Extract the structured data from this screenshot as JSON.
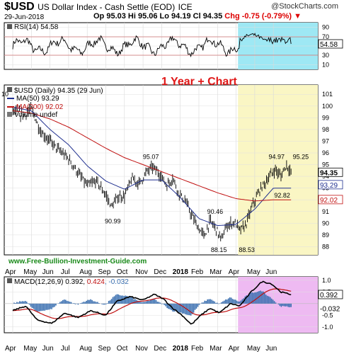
{
  "header": {
    "symbol": "$USD",
    "name": "US Dollar Index - Cash Settle (EOD)",
    "exchange": "ICE",
    "logo": "@StockCharts.com",
    "date": "29-Jun-2018",
    "ohlc": "Op 95.03  Hi 95.06  Lo 94.19  Cl 94.35",
    "change": "Chg -0.75 (-0.79%)",
    "change_marker": "▼"
  },
  "rsi": {
    "legend": "RSI(14) 54.58",
    "current_label": "54.58",
    "ticks": [
      90,
      70,
      50,
      30,
      10
    ],
    "ylim": [
      0,
      100
    ]
  },
  "price": {
    "overlay_title": "1 Year + Chart",
    "legend_main": "$USD (Daily) 94.35 (29 Jun)",
    "legend_ma50": "MA(50) 93.29",
    "legend_ma200": "MA(200) 92.02",
    "legend_vol": "Volume undef",
    "left_tick_fragment": "10",
    "ticks": [
      101,
      100,
      99,
      98,
      97,
      96,
      95,
      94,
      93,
      92,
      91,
      90,
      89,
      88
    ],
    "ylim": [
      87.3,
      101.8
    ],
    "current_labels": [
      {
        "text": "94.35",
        "value": 94.35,
        "color": "#000000",
        "bold": true
      },
      {
        "text": "93.29",
        "value": 93.29,
        "color": "#1f2f8f",
        "bold": false
      },
      {
        "text": "92.02",
        "value": 92.02,
        "color": "#c01010",
        "bold": false
      }
    ],
    "annotations": [
      {
        "text": "95.07",
        "x": 7.45,
        "y": 95.5
      },
      {
        "text": "90.99",
        "x": 5.4,
        "y": 90.0
      },
      {
        "text": "90.46",
        "x": 10.9,
        "y": 90.8
      },
      {
        "text": "88.15",
        "x": 11.1,
        "y": 87.55
      },
      {
        "text": "88.53",
        "x": 12.6,
        "y": 87.55
      },
      {
        "text": "94.97",
        "x": 14.2,
        "y": 95.5
      },
      {
        "text": "95.25",
        "x": 15.5,
        "y": 95.5
      },
      {
        "text": "92.82",
        "x": 14.5,
        "y": 92.2
      }
    ],
    "watermark": "www.Free-Bullion-Investment-Guide.com"
  },
  "macd": {
    "legend_prefix": "MACD(12,26,9)",
    "macd_value": "0.392",
    "signal_value": "0.424",
    "hist_value": "-0.032",
    "ticks": [
      "1.0",
      "0.5",
      "-0.5",
      "-1.0"
    ],
    "current_labels": [
      "0.392",
      "-0.032"
    ],
    "ylim": [
      -1.25,
      1.15
    ]
  },
  "x_axis": {
    "labels": [
      "Apr",
      "May",
      "Jun",
      "Jul",
      "Aug",
      "Sep",
      "Oct",
      "Nov",
      "Dec",
      "2018",
      "Feb",
      "Mar",
      "Apr",
      "May",
      "Jun"
    ],
    "highlight_start_month": 12.1
  },
  "colors": {
    "price": "#000000",
    "ma50": "#1f2f8f",
    "ma200": "#c01010",
    "rsi": "#000000",
    "rsi_band": "#9ee8f4",
    "price_band": "#faf6c4",
    "macd_band": "#eebaf2",
    "macd_line": "#000000",
    "signal_line": "#c01010",
    "histogram": "#3a6fb0",
    "title_red": "#e01818",
    "watermark": "#1a8a1a",
    "rsi_ref": "#c01010"
  },
  "chart_data": {
    "type": "line",
    "title": "$USD US Dollar Index - Cash Settle (EOD) ICE",
    "x": [
      "Apr",
      "May",
      "Jun",
      "Jul",
      "Aug",
      "Sep",
      "Oct",
      "Nov",
      "Dec",
      "2018",
      "Feb",
      "Mar",
      "Apr",
      "May",
      "Jun"
    ],
    "series": [
      {
        "name": "$USD (Daily)",
        "values": [
          99.8,
          98.8,
          97.2,
          95.8,
          93.6,
          92.3,
          93.4,
          94.8,
          93.8,
          91.5,
          89.5,
          89.9,
          90.2,
          92.5,
          94.6
        ]
      },
      {
        "name": "MA(50)",
        "values": [
          99.9,
          99.6,
          98.0,
          96.7,
          94.9,
          93.6,
          92.9,
          93.7,
          93.7,
          92.2,
          90.4,
          89.8,
          89.9,
          91.2,
          93.0
        ]
      },
      {
        "name": "MA(200)",
        "values": [
          99.6,
          99.4,
          98.9,
          98.2,
          97.3,
          96.4,
          95.6,
          95.0,
          94.4,
          93.8,
          93.2,
          92.6,
          92.1,
          91.9,
          92.0
        ]
      }
    ],
    "ylim": [
      87.3,
      101.8
    ]
  }
}
